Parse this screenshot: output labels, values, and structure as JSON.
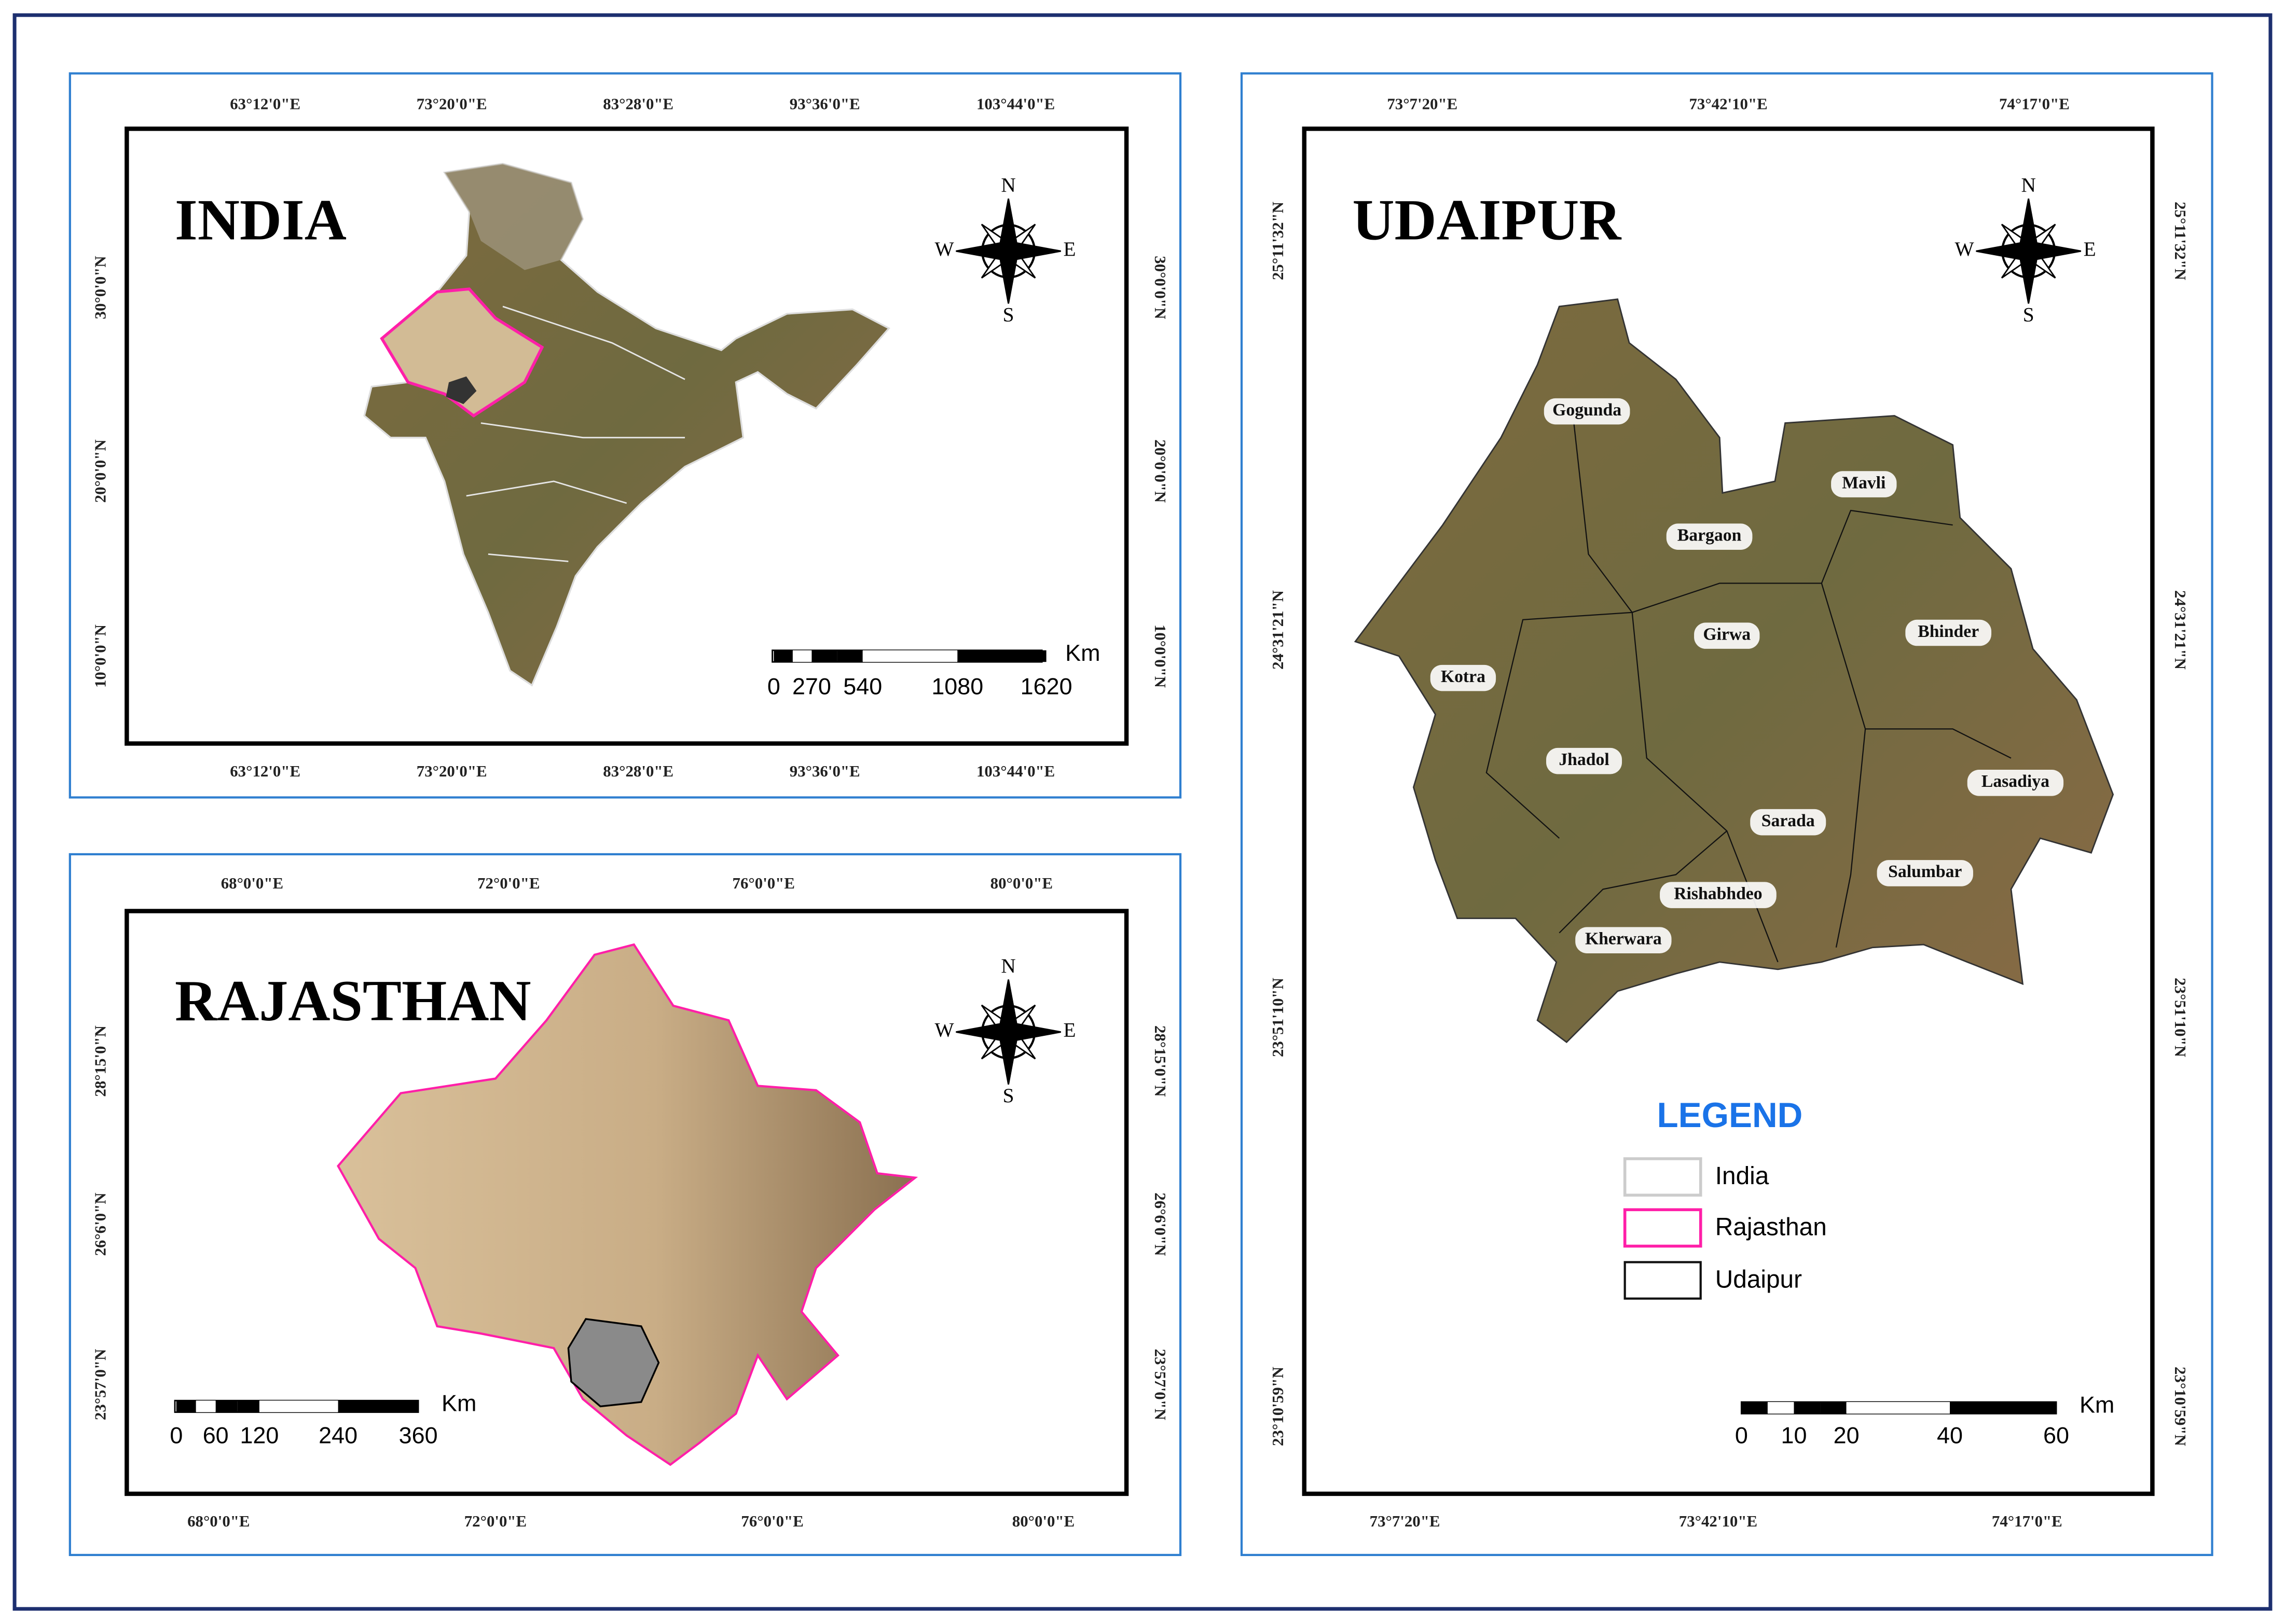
{
  "compass": {
    "n": "N",
    "e": "E",
    "s": "S",
    "w": "W"
  },
  "india": {
    "title": "INDIA",
    "top": [
      "63°12'0\"E",
      "73°20'0\"E",
      "83°28'0\"E",
      "93°36'0\"E",
      "103°44'0\"E"
    ],
    "bottom": [
      "63°12'0\"E",
      "73°20'0\"E",
      "83°28'0\"E",
      "93°36'0\"E",
      "103°44'0\"E"
    ],
    "left": [
      "10°0'0\"N",
      "20°0'0\"N",
      "30°0'0\"N"
    ],
    "right": [
      "10°0'0\"N",
      "20°0'0\"N",
      "30°0'0\"N"
    ],
    "scale": {
      "unit": "Km",
      "labels": [
        "0",
        "270",
        "540",
        "1080",
        "1620"
      ]
    }
  },
  "rajasthan": {
    "title": "RAJASTHAN",
    "top": [
      "68°0'0\"E",
      "72°0'0\"E",
      "76°0'0\"E",
      "80°0'0\"E"
    ],
    "bottom": [
      "68°0'0\"E",
      "72°0'0\"E",
      "76°0'0\"E",
      "80°0'0\"E"
    ],
    "left": [
      "23°57'0\"N",
      "26°6'0\"N",
      "28°15'0\"N"
    ],
    "right": [
      "23°57'0\"N",
      "26°6'0\"N",
      "28°15'0\"N"
    ],
    "scale": {
      "unit": "Km",
      "labels": [
        "0",
        "60",
        "120",
        "240",
        "360"
      ]
    }
  },
  "udaipur": {
    "title": "UDAIPUR",
    "top": [
      "73°7'20\"E",
      "73°42'10\"E",
      "74°17'0\"E"
    ],
    "bottom": [
      "73°7'20\"E",
      "73°42'10\"E",
      "74°17'0\"E"
    ],
    "left": [
      "23°10'59\"N",
      "23°51'10\"N",
      "24°31'21\"N",
      "25°11'32\"N"
    ],
    "right": [
      "23°10'59\"N",
      "23°51'10\"N",
      "24°31'21\"N",
      "25°11'32\"N"
    ],
    "scale": {
      "unit": "Km",
      "labels": [
        "0",
        "10",
        "20",
        "40",
        "60"
      ]
    },
    "blocks": [
      "Gogunda",
      "Mavli",
      "Bargaon",
      "Girwa",
      "Bhinder",
      "Kotra",
      "Jhadol",
      "Lasadiya",
      "Sarada",
      "Salumbar",
      "Rishabhdeo",
      "Kherwara"
    ]
  },
  "legend": {
    "title": "LEGEND",
    "items": [
      "India",
      "Rajasthan",
      "Udaipur"
    ]
  }
}
